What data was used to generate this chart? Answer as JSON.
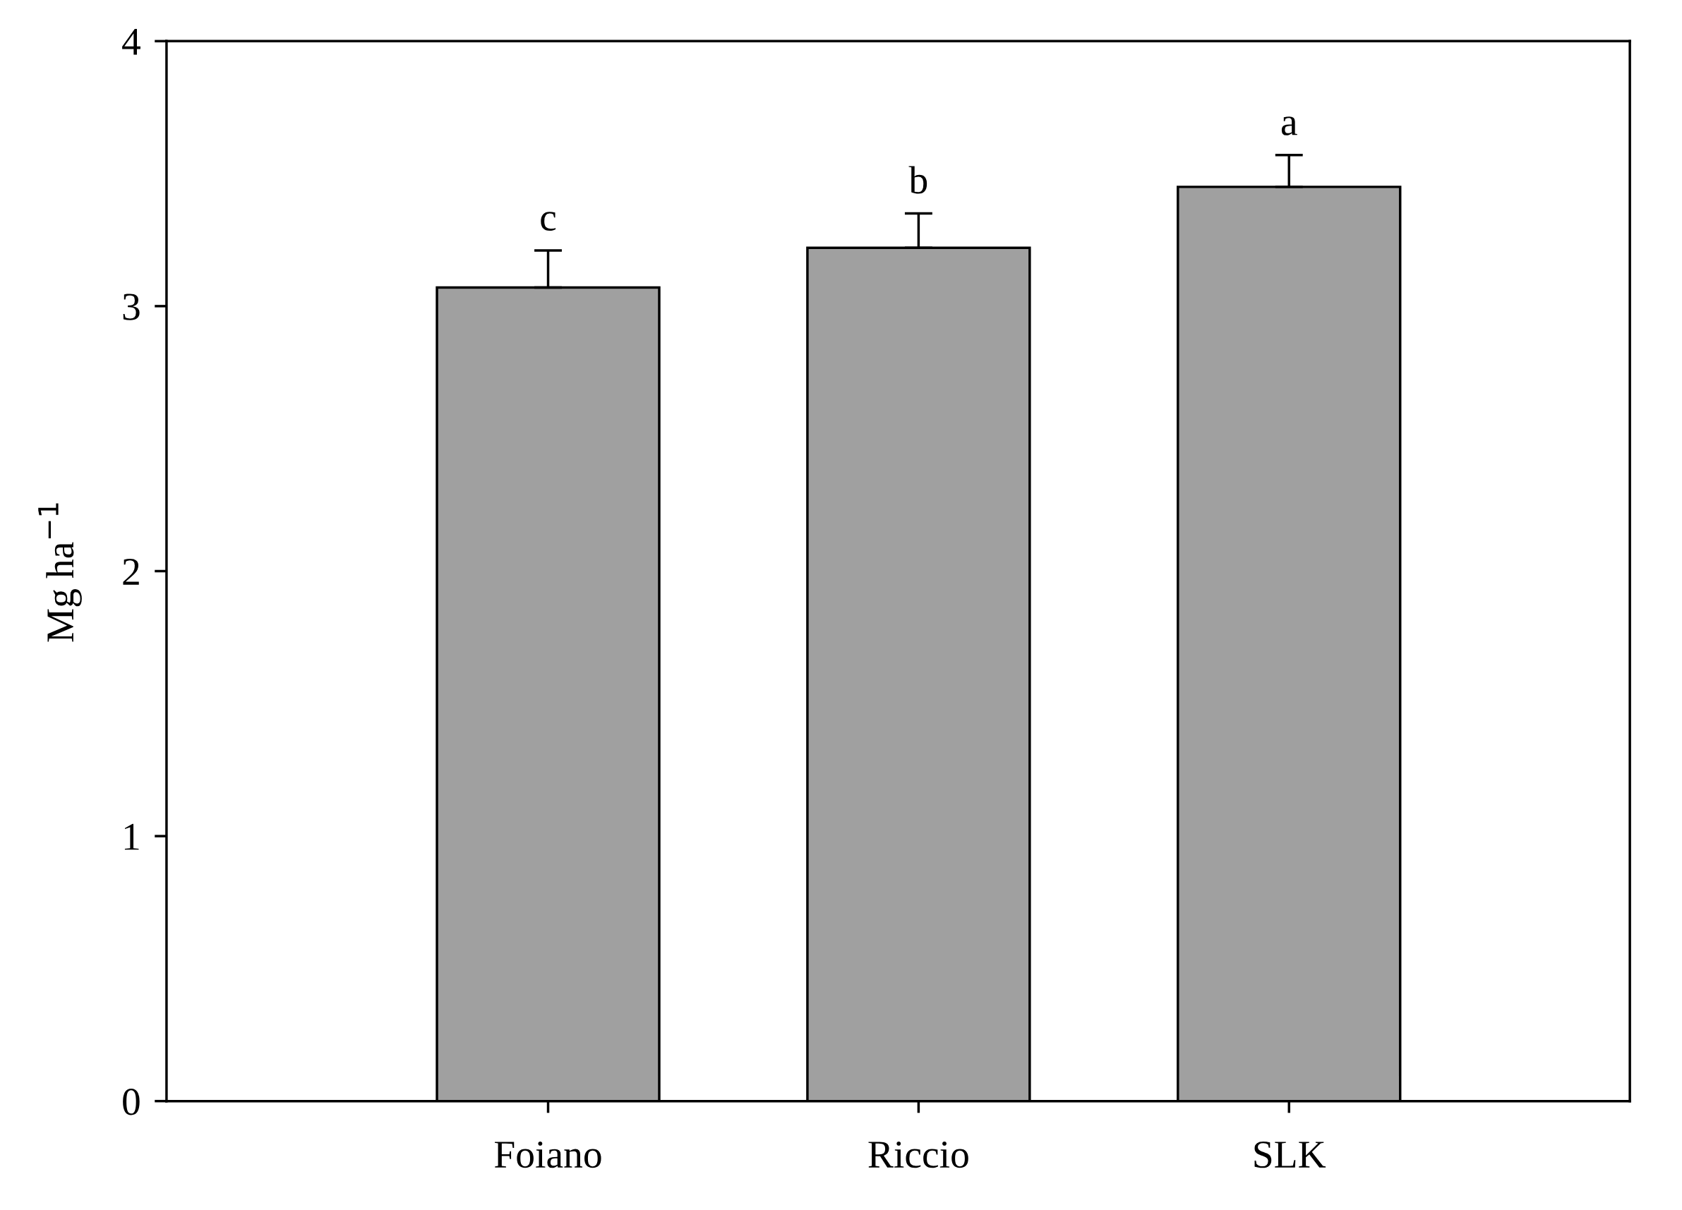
{
  "chart_data": {
    "type": "bar",
    "ylabel": "Mg ha$^{−1}$",
    "categories": [
      "Foiano",
      "Riccio",
      "SLK"
    ],
    "values": [
      3.07,
      3.22,
      3.45
    ],
    "errors": [
      0.14,
      0.13,
      0.12
    ],
    "color": "#a0a0a0",
    "ylim": [
      0,
      4
    ],
    "yticks": [
      0,
      1,
      2,
      3,
      4
    ],
    "grid": false,
    "annotations": [
      "c",
      "b",
      "a"
    ]
  }
}
